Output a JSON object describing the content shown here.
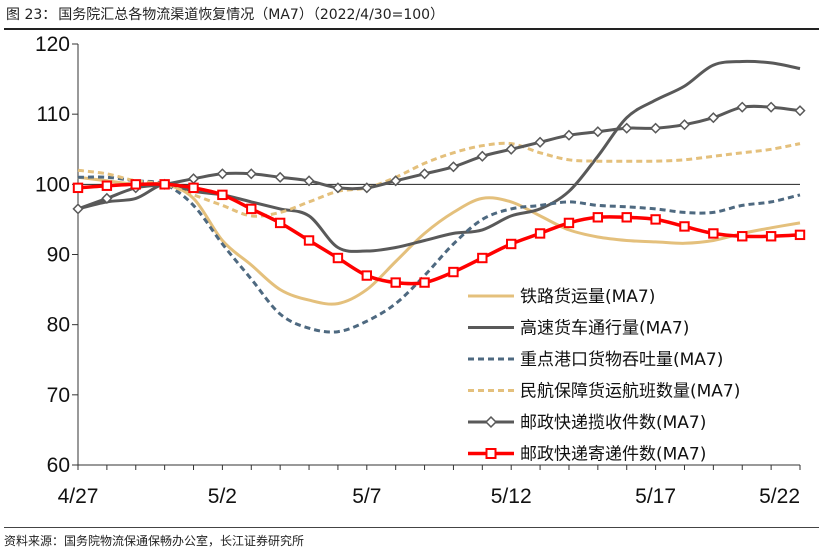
{
  "figure": {
    "number": "图 23：",
    "title": "国务院汇总各物流渠道恢复情况（MA7）（2022/4/30=100）",
    "source": "资料来源：国务院物流保通保畅办公室，长江证券研究所"
  },
  "chart_data": {
    "type": "line",
    "title": "国务院汇总各物流渠道恢复情况（MA7）（2022/4/30=100）",
    "xlabel": "",
    "ylabel": "",
    "ylim": [
      60,
      120
    ],
    "yticks": [
      "60",
      "70",
      "80",
      "90",
      "100",
      "110",
      "120"
    ],
    "xticks": [
      {
        "label": "4/27",
        "index": 0
      },
      {
        "label": "5/2",
        "index": 5
      },
      {
        "label": "5/7",
        "index": 10
      },
      {
        "label": "5/12",
        "index": 15
      },
      {
        "label": "5/17",
        "index": 20
      },
      {
        "label": "5/22",
        "index": 25
      }
    ],
    "categories": [
      "4/27",
      "4/28",
      "4/29",
      "4/30",
      "5/1",
      "5/2",
      "5/3",
      "5/4",
      "5/5",
      "5/6",
      "5/7",
      "5/8",
      "5/9",
      "5/10",
      "5/11",
      "5/12",
      "5/13",
      "5/14",
      "5/15",
      "5/16",
      "5/17",
      "5/18",
      "5/19",
      "5/20",
      "5/21",
      "5/22"
    ],
    "reference_line": 100,
    "legend_position": "bottom-right",
    "series": [
      {
        "name": "铁路货运量(MA7)",
        "color": "#e4c07c",
        "style": "solid",
        "marker": "none",
        "values": [
          101.0,
          100.5,
          100.0,
          100.0,
          98.0,
          92.0,
          88.5,
          85.0,
          83.5,
          83.0,
          85.0,
          89.0,
          93.0,
          96.0,
          98.0,
          97.5,
          95.5,
          93.5,
          92.5,
          92.0,
          91.8,
          91.6,
          92.0,
          93.0,
          93.8,
          94.5
        ]
      },
      {
        "name": "高速货车通行量(MA7)",
        "color": "#595959",
        "style": "solid",
        "marker": "none",
        "values": [
          96.5,
          97.5,
          98.0,
          100.0,
          99.0,
          98.5,
          97.5,
          96.5,
          95.5,
          91.0,
          90.5,
          91.0,
          92.0,
          93.0,
          93.5,
          95.5,
          96.5,
          99.0,
          104.0,
          109.5,
          112.0,
          114.0,
          117.0,
          117.5,
          117.3,
          116.5
        ]
      },
      {
        "name": "重点港口货物吞吐量(MA7)",
        "color": "#4e6980",
        "style": "dashed",
        "marker": "none",
        "values": [
          101.0,
          101.0,
          100.5,
          100.0,
          97.0,
          91.5,
          86.5,
          81.5,
          79.5,
          79.0,
          80.5,
          83.0,
          87.0,
          91.5,
          95.0,
          96.5,
          97.0,
          97.5,
          97.0,
          96.8,
          96.5,
          96.0,
          96.0,
          97.0,
          97.5,
          98.5
        ]
      },
      {
        "name": "民航保障货运航班数量(MA7)",
        "color": "#e4c07c",
        "style": "dashed",
        "marker": "none",
        "values": [
          102.0,
          101.5,
          100.5,
          100.0,
          98.5,
          97.0,
          95.5,
          96.0,
          97.5,
          99.0,
          99.5,
          101.0,
          103.0,
          104.5,
          105.5,
          105.8,
          104.5,
          103.5,
          103.3,
          103.3,
          103.3,
          103.5,
          104.0,
          104.5,
          105.0,
          105.8
        ]
      },
      {
        "name": "邮政快递揽收件数(MA7)",
        "color": "#595959",
        "style": "solid",
        "marker": "diamond",
        "values": [
          96.5,
          98.0,
          99.5,
          100.0,
          100.8,
          101.5,
          101.5,
          101.0,
          100.5,
          99.5,
          99.5,
          100.5,
          101.5,
          102.5,
          104.0,
          105.0,
          106.0,
          107.0,
          107.5,
          108.0,
          108.0,
          108.5,
          109.5,
          111.0,
          111.0,
          110.5
        ]
      },
      {
        "name": "邮政快递寄递件数(MA7)",
        "color": "#ff0000",
        "style": "solid",
        "marker": "square",
        "values": [
          99.5,
          99.8,
          100.0,
          100.0,
          99.5,
          98.5,
          96.5,
          94.5,
          92.0,
          89.5,
          87.0,
          86.0,
          86.0,
          87.5,
          89.5,
          91.5,
          93.0,
          94.5,
          95.3,
          95.3,
          95.0,
          94.0,
          93.0,
          92.6,
          92.6,
          92.8
        ]
      }
    ]
  }
}
